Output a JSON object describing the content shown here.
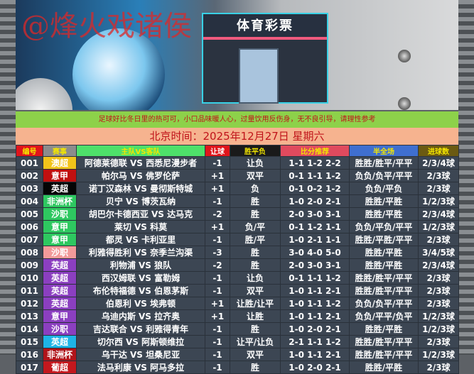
{
  "banner": {
    "watermark": "@烽火戏诸侯",
    "store_sign": "体育彩票"
  },
  "notice": "足球好比冬日里的热可可，小口品味暖人心，过量饮用反伤身，无不良引导，请理性参考",
  "date": "北京时间：2025年12月27日  星期六",
  "headers": [
    {
      "label": "编号",
      "bg": "#e0151b"
    },
    {
      "label": "赛事",
      "bg": "#8c8c8c"
    },
    {
      "label": "主队VS客队",
      "bg": "#4ee06a"
    },
    {
      "label": "让球",
      "bg": "#e0151b",
      "color": "#ffffff"
    },
    {
      "label": "胜平负",
      "bg": "#1a1a1a"
    },
    {
      "label": "比分推荐",
      "bg": "#e04a5e"
    },
    {
      "label": "半全场",
      "bg": "#3f6fd0"
    },
    {
      "label": "进球数",
      "bg": "#6b5a12"
    }
  ],
  "rows": [
    {
      "no": "001",
      "league": "澳超",
      "league_bg": "#f2c41a",
      "match": "阿德莱德联 VS 西悉尼漫步者",
      "handicap": "-1",
      "result": "让负",
      "score": "1-1 1-2 2-2",
      "half_full": "胜胜/胜平/平平",
      "goals": "2/3/4球"
    },
    {
      "no": "002",
      "league": "意甲",
      "league_bg": "#c01010",
      "match": "帕尔马 VS 佛罗伦萨",
      "handicap": "+1",
      "result": "双平",
      "score": "0-1 1-1 1-2",
      "half_full": "负负/负平/平平",
      "goals": "2/3球"
    },
    {
      "no": "003",
      "league": "英超",
      "league_bg": "#050505",
      "match": "诺丁汉森林 VS 曼彻斯特城",
      "handicap": "+1",
      "result": "负",
      "score": "0-1 0-2 1-2",
      "half_full": "负负/平负",
      "goals": "2/3球"
    },
    {
      "no": "004",
      "league": "非洲杯",
      "league_bg": "#2ec860",
      "match": "贝宁 VS 博茨瓦纳",
      "handicap": "-1",
      "result": "胜",
      "score": "1-0 2-0 2-1",
      "half_full": "胜胜/平胜",
      "goals": "1/2/3球"
    },
    {
      "no": "005",
      "league": "沙职",
      "league_bg": "#2ec860",
      "match": "胡巴尔卡德西亚 VS 达马克",
      "handicap": "-2",
      "result": "胜",
      "score": "2-0 3-0 3-1",
      "half_full": "胜胜/平胜",
      "goals": "2/3/4球"
    },
    {
      "no": "006",
      "league": "意甲",
      "league_bg": "#2ec860",
      "match": "莱切 VS 科莫",
      "handicap": "+1",
      "result": "负/平",
      "score": "0-1 1-2 1-1",
      "half_full": "负负/平负/平平",
      "goals": "1/2/3球"
    },
    {
      "no": "007",
      "league": "意甲",
      "league_bg": "#2ec860",
      "match": "都灵 VS 卡利亚里",
      "handicap": "-1",
      "result": "胜/平",
      "score": "1-0 2-1 1-1",
      "half_full": "胜胜/平胜/平平",
      "goals": "2/3球"
    },
    {
      "no": "008",
      "league": "沙职",
      "league_bg": "#f29a9a",
      "match": "利雅得胜利 VS 奈季兰沟渠",
      "handicap": "-3",
      "result": "胜",
      "score": "3-0 4-0 5-0",
      "half_full": "胜胜/平胜",
      "goals": "3/4/5球"
    },
    {
      "no": "009",
      "league": "英超",
      "league_bg": "#8b3fc0",
      "match": "利物浦 VS 狼队",
      "handicap": "-2",
      "result": "胜",
      "score": "2-0 3-0 3-1",
      "half_full": "胜胜/平胜",
      "goals": "2/3/4球"
    },
    {
      "no": "010",
      "league": "英超",
      "league_bg": "#8b3fc0",
      "match": "西汉姆联 VS 富勒姆",
      "handicap": "-1",
      "result": "让负",
      "score": "0-1 1-1 1-2",
      "half_full": "胜胜/胜平/平平",
      "goals": "2/3球"
    },
    {
      "no": "011",
      "league": "英超",
      "league_bg": "#8b3fc0",
      "match": "布伦特福德 VS 伯恩茅斯",
      "handicap": "-1",
      "result": "双平",
      "score": "1-0 1-1 2-1",
      "half_full": "胜胜/胜平/平平",
      "goals": "2/3球"
    },
    {
      "no": "012",
      "league": "英超",
      "league_bg": "#8b3fc0",
      "match": "伯恩利 VS 埃弗顿",
      "handicap": "+1",
      "result": "让胜/让平",
      "score": "1-0 1-1 1-2",
      "half_full": "负负/负平/平平",
      "goals": "2/3球"
    },
    {
      "no": "013",
      "league": "意甲",
      "league_bg": "#8b3fc0",
      "match": "乌迪内斯 VS 拉齐奥",
      "handicap": "+1",
      "result": "让胜",
      "score": "1-0 1-1 2-1",
      "half_full": "负负/平平/负平",
      "goals": "1/2/3球"
    },
    {
      "no": "014",
      "league": "沙职",
      "league_bg": "#8b3fc0",
      "match": "吉达联合 VS 利雅得青年",
      "handicap": "-1",
      "result": "胜",
      "score": "1-0 2-0 2-1",
      "half_full": "胜胜/平胜",
      "goals": "1/2/3球"
    },
    {
      "no": "015",
      "league": "英超",
      "league_bg": "#1eb4e6",
      "match": "切尔西 VS 阿斯顿维拉",
      "handicap": "-1",
      "result": "让平/让负",
      "score": "2-1 1-1 1-2",
      "half_full": "胜胜/胜平/平平",
      "goals": "2/3球"
    },
    {
      "no": "016",
      "league": "非洲杯",
      "league_bg": "#b0141a",
      "match": "乌干达 VS 坦桑尼亚",
      "handicap": "-1",
      "result": "双平",
      "score": "1-0 1-1 2-1",
      "half_full": "胜胜/胜平/平平",
      "goals": "1/2/3球"
    },
    {
      "no": "017",
      "league": "葡超",
      "league_bg": "#c4181e",
      "match": "法马利康 VS 阿马多拉",
      "handicap": "-1",
      "result": "胜",
      "score": "1-0 2-0 2-1",
      "half_full": "胜胜/平胜",
      "goals": "2/3球"
    }
  ]
}
